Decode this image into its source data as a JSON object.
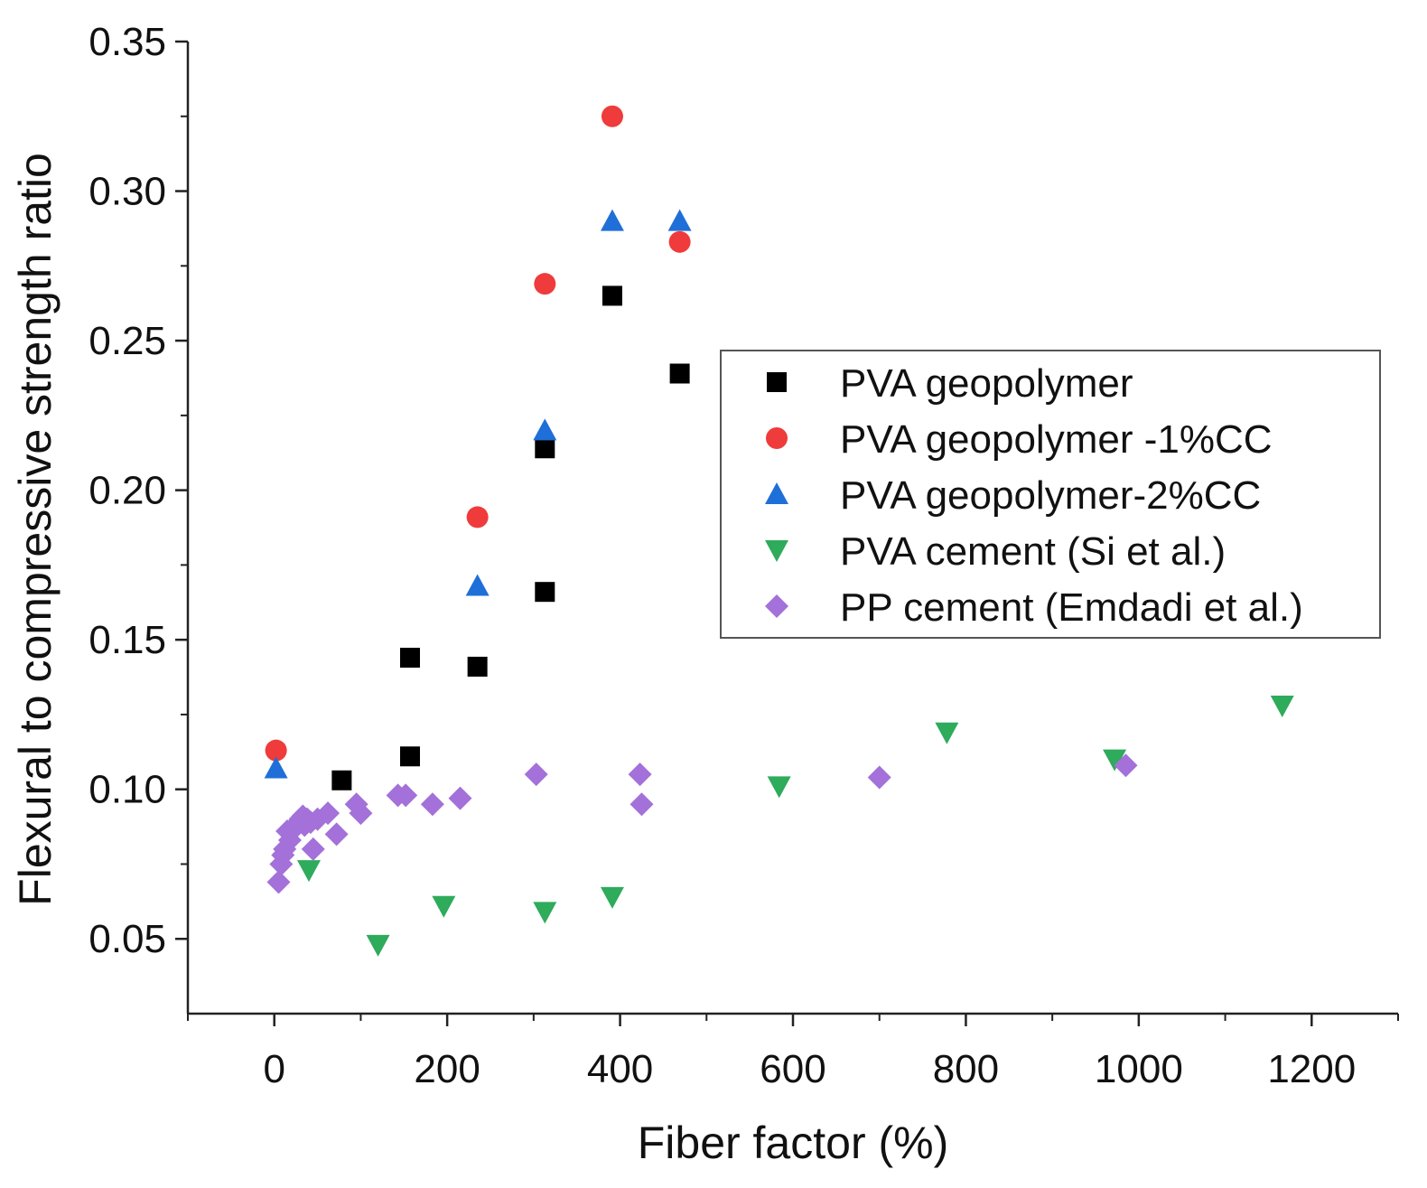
{
  "chart_data": {
    "type": "scatter",
    "title": "",
    "xlabel": "Fiber factor (%)",
    "ylabel": "Flexural to compressive strength ratio",
    "xlim": [
      -100,
      1300
    ],
    "ylim": [
      0.025,
      0.35
    ],
    "xticks": [
      0,
      200,
      400,
      600,
      800,
      1000,
      1200
    ],
    "xtick_labels": [
      "0",
      "200",
      "400",
      "600",
      "800",
      "1000",
      "1200"
    ],
    "yticks": [
      0.05,
      0.1,
      0.15,
      0.2,
      0.25,
      0.3,
      0.35
    ],
    "ytick_labels": [
      "0.05",
      "0.10",
      "0.15",
      "0.20",
      "0.25",
      "0.30",
      "0.35"
    ],
    "grid": false,
    "legend_position": "right",
    "series": [
      {
        "name": "PVA geopolymer",
        "marker": "square",
        "color": "#000000",
        "x": [
          78,
          157,
          157,
          235,
          313,
          313,
          391,
          469
        ],
        "y": [
          0.103,
          0.144,
          0.111,
          0.141,
          0.214,
          0.166,
          0.265,
          0.239
        ]
      },
      {
        "name": "PVA geopolymer -1%CC",
        "marker": "circle",
        "color": "#ef3b3b",
        "x": [
          2,
          235,
          313,
          391,
          469
        ],
        "y": [
          0.113,
          0.191,
          0.269,
          0.325,
          0.283
        ]
      },
      {
        "name": "PVA geopolymer-2%CC",
        "marker": "triangle-up",
        "color": "#1f6fd9",
        "x": [
          2,
          235,
          313,
          391,
          469
        ],
        "y": [
          0.107,
          0.168,
          0.22,
          0.29,
          0.29
        ]
      },
      {
        "name": "PVA cement (Si et al.)",
        "marker": "triangle-down",
        "color": "#2eab5b",
        "x": [
          40,
          120,
          196,
          313,
          391,
          584,
          778,
          972,
          1166
        ],
        "y": [
          0.073,
          0.048,
          0.061,
          0.059,
          0.064,
          0.101,
          0.119,
          0.11,
          0.128
        ]
      },
      {
        "name": "PP cement (Emdadi et al.)",
        "marker": "diamond",
        "color": "#a371d9",
        "x": [
          5,
          8,
          10,
          12,
          15,
          18,
          20,
          22,
          25,
          28,
          30,
          33,
          35,
          38,
          42,
          45,
          50,
          62,
          72,
          95,
          100,
          143,
          152,
          183,
          215,
          303,
          423,
          425,
          700,
          985
        ],
        "y": [
          0.069,
          0.075,
          0.078,
          0.08,
          0.086,
          0.083,
          0.086,
          0.087,
          0.088,
          0.089,
          0.09,
          0.091,
          0.088,
          0.09,
          0.089,
          0.08,
          0.09,
          0.092,
          0.085,
          0.095,
          0.092,
          0.098,
          0.098,
          0.095,
          0.097,
          0.105,
          0.105,
          0.095,
          0.104,
          0.108
        ]
      }
    ]
  }
}
